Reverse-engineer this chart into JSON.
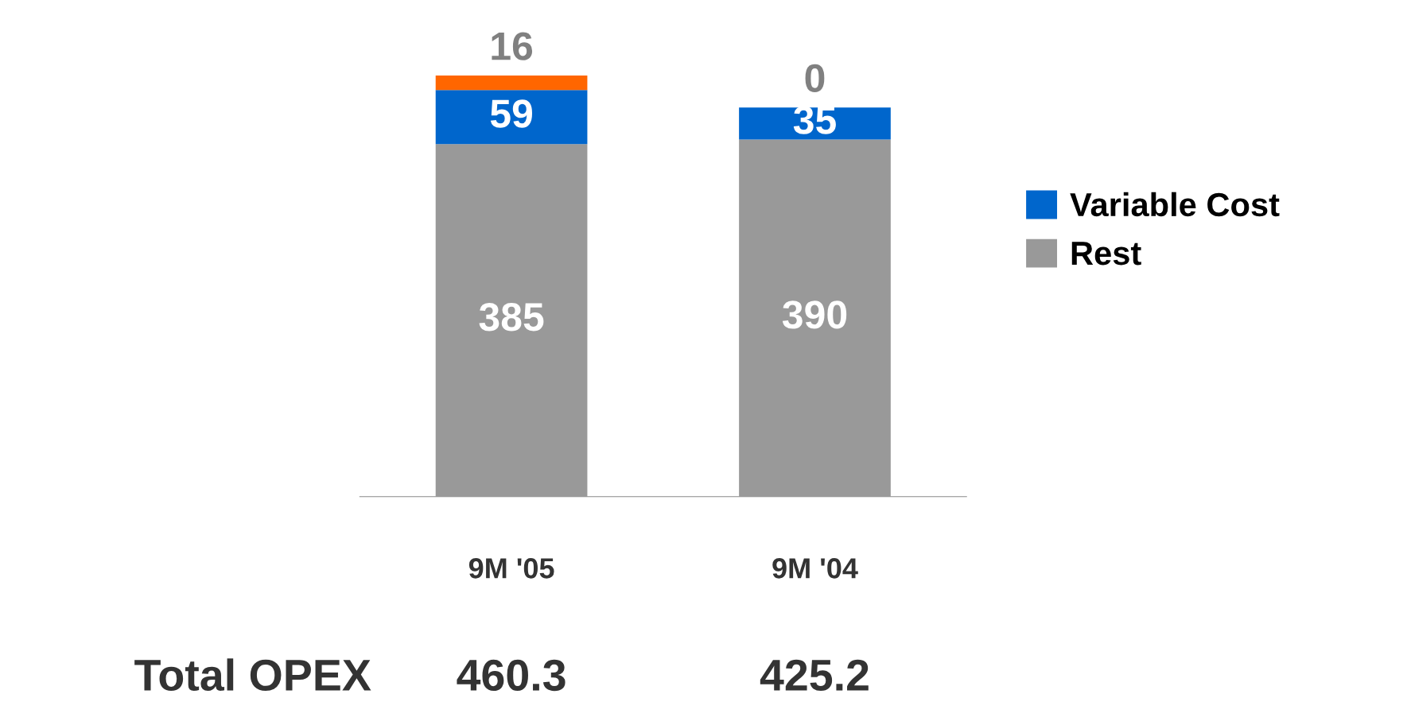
{
  "chart_data": {
    "type": "bar",
    "stacked": true,
    "categories": [
      "9M '05",
      "9M '04"
    ],
    "series": [
      {
        "name": "Rest",
        "color": "#999999",
        "values": [
          385,
          390
        ]
      },
      {
        "name": "Variable Cost",
        "color": "#0066cc",
        "values": [
          59,
          35
        ]
      },
      {
        "color": "#ff6600",
        "values": [
          16,
          0
        ]
      }
    ],
    "data_labels": true,
    "legend": "right",
    "grid": false,
    "annotations": [
      "Total OPEX",
      "460.3",
      "425.2"
    ]
  }
}
